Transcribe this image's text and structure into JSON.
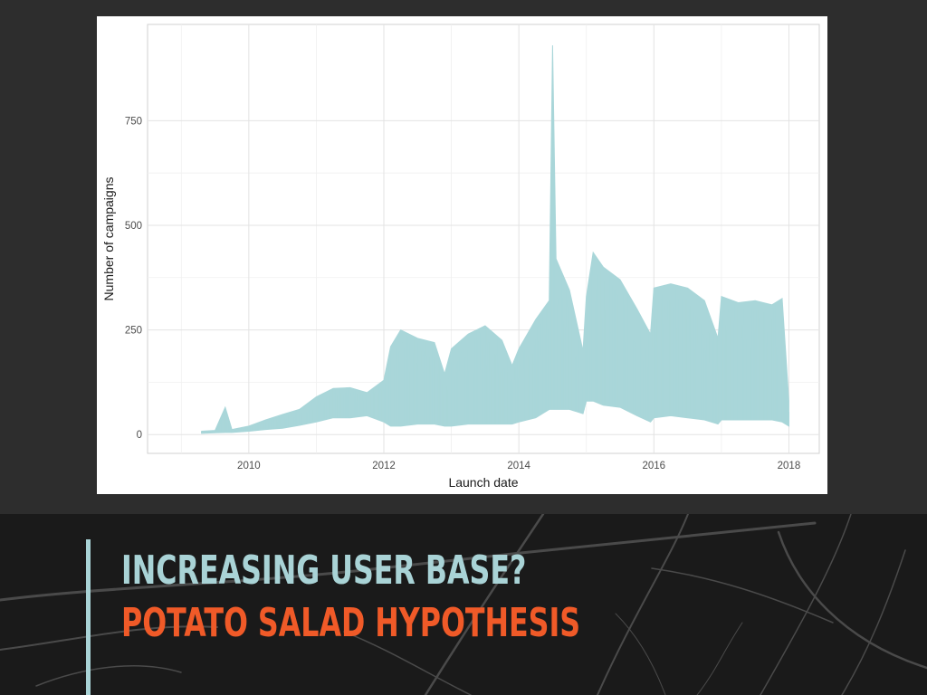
{
  "slide": {
    "headline_1": "INCREASING USER BASE?",
    "headline_2": "POTATO SALAD HYPOTHESIS",
    "colors": {
      "background": "#2d2d2d",
      "band": "#1a1a1a",
      "headline_1": "#a9d3d6",
      "headline_2": "#f05a28",
      "accent_bar": "#a9d3d6"
    }
  },
  "chart_data": {
    "type": "area",
    "title": "",
    "xlabel": "Launch date",
    "ylabel": "Number of campaigns",
    "x_ticks": [
      2010,
      2012,
      2014,
      2016,
      2018
    ],
    "y_ticks": [
      0,
      250,
      500,
      750
    ],
    "xlim": [
      2008.5,
      2018.45
    ],
    "ylim": [
      -45,
      980
    ],
    "grid": true,
    "legend": "none",
    "series_color": "#a9d6d9",
    "series": [
      {
        "x": [
          2009.3,
          2009.5,
          2009.65,
          2009.75,
          2010.0,
          2010.25,
          2010.5,
          2010.75,
          2011.0,
          2011.25,
          2011.5,
          2011.75,
          2012.0,
          2012.1,
          2012.25,
          2012.5,
          2012.75,
          2012.9,
          2013.0,
          2013.25,
          2013.5,
          2013.75,
          2013.9,
          2014.0,
          2014.25,
          2014.45,
          2014.5,
          2014.55,
          2014.75,
          2014.95,
          2015.0,
          2015.1,
          2015.25,
          2015.5,
          2015.75,
          2015.95,
          2016.0,
          2016.25,
          2016.5,
          2016.75,
          2016.95,
          2017.0,
          2017.25,
          2017.5,
          2017.75,
          2017.9,
          2018.0
        ],
        "y_high": [
          8,
          10,
          65,
          12,
          20,
          35,
          48,
          60,
          90,
          110,
          112,
          100,
          130,
          210,
          250,
          230,
          220,
          145,
          205,
          240,
          260,
          225,
          165,
          205,
          275,
          320,
          930,
          420,
          345,
          200,
          330,
          435,
          400,
          370,
          300,
          240,
          350,
          360,
          350,
          320,
          230,
          330,
          315,
          320,
          310,
          325,
          80
        ],
        "y_low": [
          3,
          4,
          5,
          5,
          8,
          12,
          15,
          22,
          30,
          40,
          40,
          45,
          30,
          20,
          20,
          25,
          25,
          20,
          20,
          25,
          25,
          25,
          25,
          30,
          40,
          60,
          60,
          60,
          60,
          50,
          80,
          80,
          70,
          65,
          45,
          30,
          40,
          45,
          40,
          35,
          25,
          35,
          35,
          35,
          35,
          30,
          20
        ]
      }
    ]
  }
}
